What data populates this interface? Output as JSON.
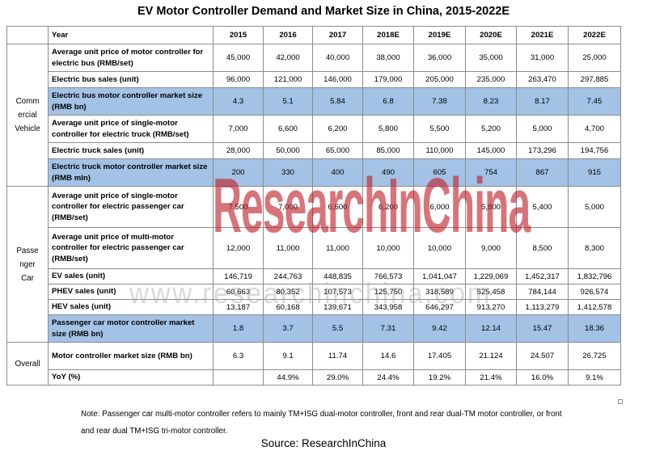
{
  "title": "EV Motor Controller Demand and Market Size in China, 2015-2022E",
  "header": {
    "label": "Year",
    "years": [
      "2015",
      "2016",
      "2017",
      "2018E",
      "2019E",
      "2020E",
      "2021E",
      "2022E"
    ]
  },
  "categories": {
    "commercial": "Commercial Vehicle",
    "passenger": "Passenger Car",
    "overall": "Overall"
  },
  "rows": [
    {
      "label": "Average unit price of motor controller for electric bus (RMB/set)",
      "values": [
        "45,000",
        "42,000",
        "40,000",
        "38,000",
        "36,000",
        "35,000",
        "31,000",
        "25,000"
      ]
    },
    {
      "label": "Electric bus sales (unit)",
      "values": [
        "96,000",
        "121,000",
        "146,000",
        "179,000",
        "205,000",
        "235,000",
        "263,470",
        "297,885"
      ]
    },
    {
      "label": "Electric bus motor controller market size (RMB bn)",
      "values": [
        "4.3",
        "5.1",
        "5.84",
        "6.8",
        "7.38",
        "8.23",
        "8.17",
        "7.45"
      ]
    },
    {
      "label": "Average unit price of single-motor controller for electric truck (RMB/set)",
      "values": [
        "7,000",
        "6,600",
        "6,200",
        "5,800",
        "5,500",
        "5,200",
        "5,000",
        "4,700"
      ]
    },
    {
      "label": "Electric truck sales (unit)",
      "values": [
        "28,000",
        "50,000",
        "65,000",
        "85,000",
        "110,000",
        "145,000",
        "173,296",
        "194,756"
      ]
    },
    {
      "label": "Electric truck motor controller market size (RMB mln)",
      "values": [
        "200",
        "330",
        "400",
        "490",
        "605",
        "754",
        "867",
        "915"
      ]
    },
    {
      "label": "Average unit price of single-motor controller for electric passenger car (RMB/set)",
      "values": [
        "7,500",
        "7,000",
        "6,600",
        "6,200",
        "6,000",
        "5,800",
        "5,400",
        "5,000"
      ]
    },
    {
      "label": "Average unit price of multi-motor controller for electric passenger car (RMB/set)",
      "values": [
        "12,000",
        "11,000",
        "11,000",
        "10,000",
        "10,000",
        "9,000",
        "8,500",
        "8,300"
      ]
    },
    {
      "label": "EV sales (unit)",
      "values": [
        "146,719",
        "244,763",
        "448,835",
        "766,573",
        "1,041,047",
        "1,229,069",
        "1,452,317",
        "1,832,796"
      ]
    },
    {
      "label": "PHEV sales (unit)",
      "values": [
        "60,663",
        "80,352",
        "107,573",
        "125,750",
        "318,589",
        "525,458",
        "784,144",
        "926,574"
      ]
    },
    {
      "label": "HEV sales (unit)",
      "values": [
        "13,187",
        "60,168",
        "139,671",
        "343,958",
        "646,297",
        "913,270",
        "1,113,279",
        "1,412,578"
      ]
    },
    {
      "label": "Passenger car motor controller market size (RMB bn)",
      "values": [
        "1.8",
        "3.7",
        "5.5",
        "7.31",
        "9.42",
        "12.14",
        "15.47",
        "18.36"
      ]
    },
    {
      "label": "Motor controller market size (RMB bn)",
      "values": [
        "6.3",
        "9.1",
        "11.74",
        "14.6",
        "17.405",
        "21.124",
        "24.507",
        "26.725"
      ]
    },
    {
      "label": "YoY (%)",
      "values": [
        "",
        "44.9%",
        "29.0%",
        "24.4%",
        "19.2%",
        "21.4%",
        "16.0%",
        "9.1%"
      ]
    }
  ],
  "watermark": {
    "brand": "ResearchInChina",
    "url": "www.researchinchina.com",
    "color": "#be1e28"
  },
  "note": "Note: Passenger car multi-motor controller refers to mainly TM+ISG dual-motor controller, front and rear dual-TM motor controller, or front and rear dual TM+ISG tri-motor controller.",
  "source": "Source: ResearchInChina",
  "colors": {
    "highlight": "#a3c2e6",
    "border": "#8c8c8c"
  }
}
